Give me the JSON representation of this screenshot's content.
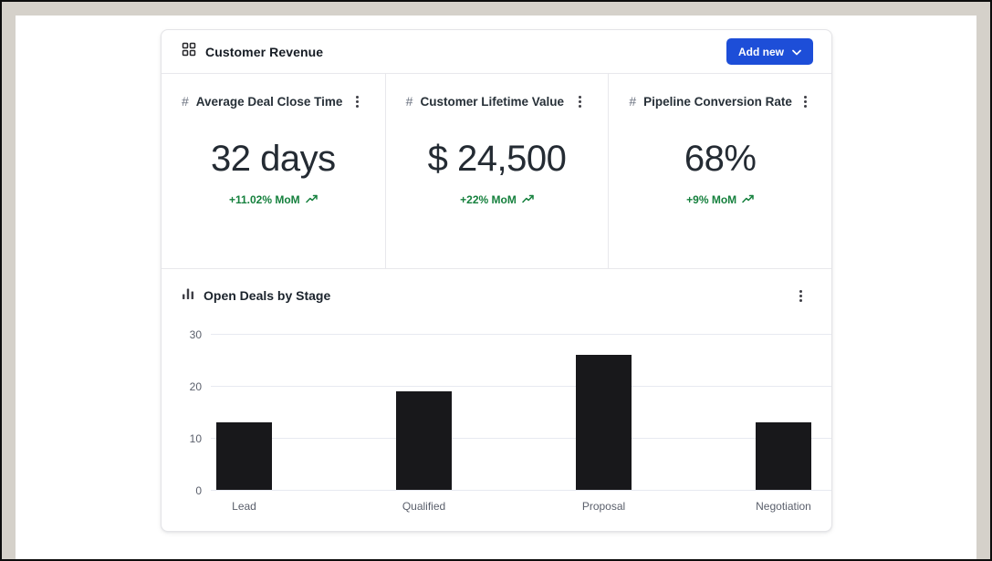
{
  "header": {
    "title": "Customer Revenue",
    "add_new_label": "Add new"
  },
  "kpi_cards": [
    {
      "icon_glyph": "#",
      "title": "Average Deal Close Time",
      "value": "32 days",
      "change": "+11.02% MoM"
    },
    {
      "icon_glyph": "#",
      "title": "Customer Lifetime Value",
      "value": "$ 24,500",
      "change": "+22% MoM"
    },
    {
      "icon_glyph": "#",
      "title": "Pipeline Conversion Rate",
      "value": "68%",
      "change": "+9% MoM"
    }
  ],
  "chart_data": {
    "type": "bar",
    "title": "Open Deals by Stage",
    "categories": [
      "Lead",
      "Qualified",
      "Proposal",
      "Negotiation"
    ],
    "values": [
      13,
      19,
      26,
      13
    ],
    "xlabel": "",
    "ylabel": "",
    "ylim": [
      0,
      30
    ],
    "yticks": [
      0,
      10,
      20,
      30
    ],
    "grid": true,
    "legend": false,
    "bar_color": "#18181b"
  },
  "colors": {
    "accent_blue": "#1d4ed8",
    "positive_green": "#15803d",
    "bar_black": "#18181b",
    "frame_gray": "#d5d1ca",
    "card_border": "#e4e4e7"
  }
}
